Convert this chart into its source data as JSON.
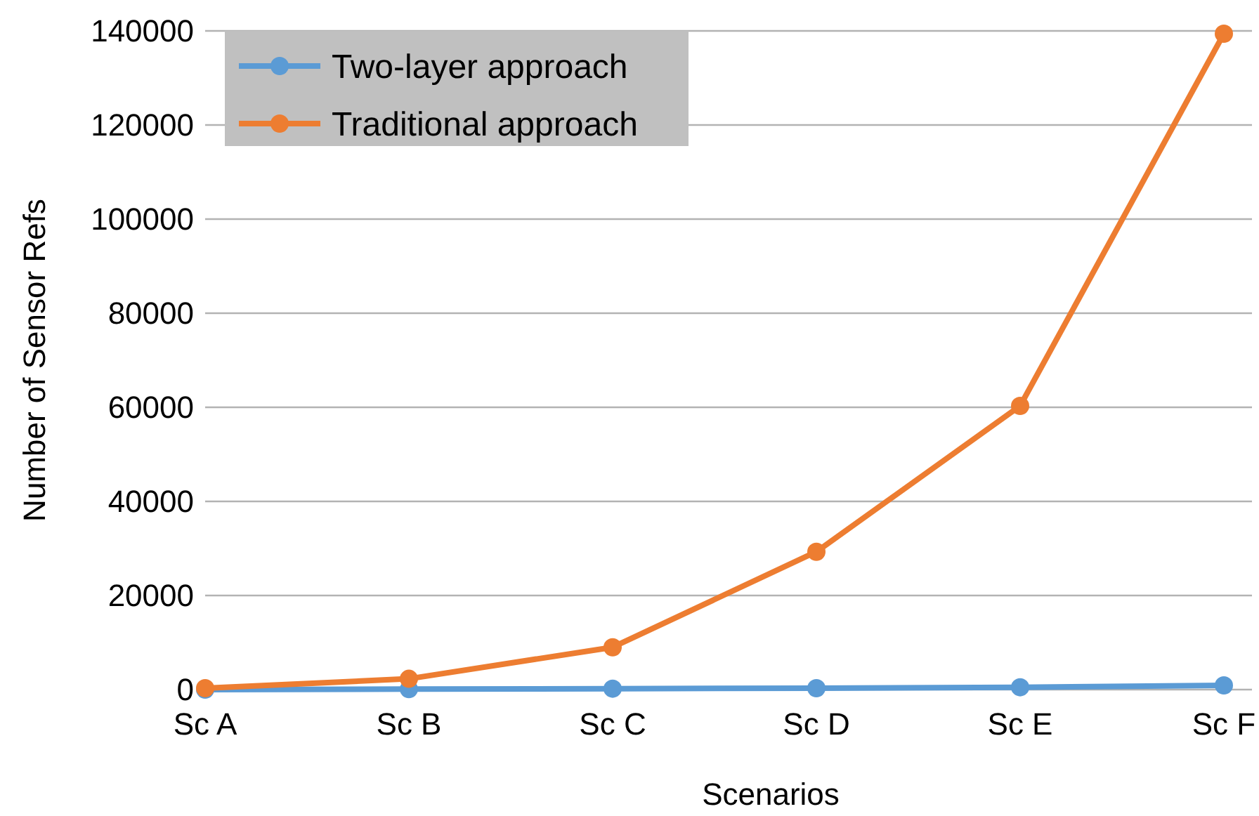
{
  "chart_data": {
    "type": "line",
    "xlabel": "Scenarios",
    "ylabel": "Number of Sensor Refs",
    "categories": [
      "Sc A",
      "Sc B",
      "Sc C",
      "Sc D",
      "Sc E",
      "Sc F"
    ],
    "series": [
      {
        "name": "Two-layer approach",
        "color": "#5b9bd5",
        "values": [
          0,
          100,
          200,
          300,
          500,
          900
        ]
      },
      {
        "name": "Traditional approach",
        "color": "#ed7d31",
        "values": [
          300,
          2300,
          9000,
          29300,
          60300,
          139400
        ]
      }
    ],
    "ylim": [
      0,
      140000
    ],
    "yticks": [
      0,
      20000,
      40000,
      60000,
      80000,
      100000,
      120000,
      140000
    ],
    "grid": "y",
    "legend": "top left",
    "marker": "circle",
    "line_style": "solid"
  }
}
